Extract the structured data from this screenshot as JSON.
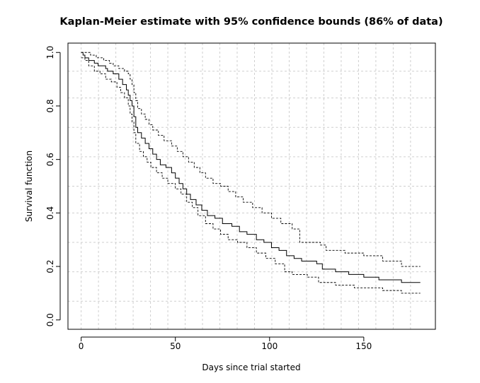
{
  "chart_data": {
    "type": "line",
    "title": "Kaplan-Meier estimate with 95% confidence bounds (86% of data)",
    "xlabel": "Days since trial started",
    "ylabel": "Survival function",
    "xlim": [
      -7,
      188
    ],
    "ylim": [
      -0.035,
      1.035
    ],
    "x_ticks": [
      0,
      50,
      100,
      150
    ],
    "y_ticks": [
      0.0,
      0.2,
      0.4,
      0.6,
      0.8,
      1.0
    ],
    "x_tick_labels": [
      "0",
      "50",
      "100",
      "150"
    ],
    "y_tick_labels": [
      "0.0",
      "0.2",
      "0.4",
      "0.6",
      "0.8",
      "1.0"
    ],
    "grid": true,
    "grid_x": [
      0,
      9.2,
      18.4,
      27.6,
      36.8,
      46,
      55.2,
      64.4,
      73.6,
      82.8,
      92,
      101.2,
      110.4,
      119.6,
      128.8,
      138,
      147.2,
      156.4,
      165.6,
      174.8
    ],
    "grid_y": [
      0.07,
      0.18,
      0.29,
      0.4,
      0.5,
      0.61,
      0.72,
      0.83,
      0.93
    ],
    "step": true,
    "series": [
      {
        "role": "estimate",
        "line_style": "solid",
        "points": [
          [
            0,
            1.0
          ],
          [
            1,
            0.99
          ],
          [
            2,
            0.98
          ],
          [
            4,
            0.97
          ],
          [
            7,
            0.96
          ],
          [
            9,
            0.95
          ],
          [
            13,
            0.94
          ],
          [
            14,
            0.93
          ],
          [
            17,
            0.92
          ],
          [
            20,
            0.9
          ],
          [
            22,
            0.88
          ],
          [
            24,
            0.86
          ],
          [
            25,
            0.84
          ],
          [
            26,
            0.82
          ],
          [
            27,
            0.8
          ],
          [
            28,
            0.76
          ],
          [
            29,
            0.72
          ],
          [
            30,
            0.7
          ],
          [
            32,
            0.68
          ],
          [
            34,
            0.66
          ],
          [
            36,
            0.64
          ],
          [
            38,
            0.62
          ],
          [
            40,
            0.6
          ],
          [
            42,
            0.58
          ],
          [
            45,
            0.57
          ],
          [
            48,
            0.55
          ],
          [
            50,
            0.53
          ],
          [
            52,
            0.51
          ],
          [
            54,
            0.49
          ],
          [
            56,
            0.47
          ],
          [
            58,
            0.45
          ],
          [
            61,
            0.43
          ],
          [
            64,
            0.41
          ],
          [
            67,
            0.39
          ],
          [
            71,
            0.38
          ],
          [
            75,
            0.36
          ],
          [
            80,
            0.35
          ],
          [
            84,
            0.33
          ],
          [
            88,
            0.32
          ],
          [
            93,
            0.3
          ],
          [
            97,
            0.29
          ],
          [
            101,
            0.27
          ],
          [
            105,
            0.26
          ],
          [
            109,
            0.24
          ],
          [
            113,
            0.23
          ],
          [
            117,
            0.22
          ],
          [
            125,
            0.21
          ],
          [
            128,
            0.19
          ],
          [
            135,
            0.18
          ],
          [
            142,
            0.17
          ],
          [
            150,
            0.16
          ],
          [
            158,
            0.15
          ],
          [
            170,
            0.14
          ],
          [
            180,
            0.14
          ]
        ]
      },
      {
        "role": "upper bound",
        "line_style": "dashed",
        "points": [
          [
            0,
            1.0
          ],
          [
            2,
            1.0
          ],
          [
            5,
            0.99
          ],
          [
            8,
            0.98
          ],
          [
            12,
            0.97
          ],
          [
            15,
            0.96
          ],
          [
            17,
            0.95
          ],
          [
            20,
            0.94
          ],
          [
            23,
            0.93
          ],
          [
            25,
            0.92
          ],
          [
            26,
            0.9
          ],
          [
            27,
            0.88
          ],
          [
            28,
            0.85
          ],
          [
            29,
            0.82
          ],
          [
            30,
            0.79
          ],
          [
            32,
            0.77
          ],
          [
            34,
            0.75
          ],
          [
            36,
            0.73
          ],
          [
            38,
            0.71
          ],
          [
            41,
            0.69
          ],
          [
            44,
            0.67
          ],
          [
            48,
            0.65
          ],
          [
            51,
            0.63
          ],
          [
            54,
            0.61
          ],
          [
            57,
            0.59
          ],
          [
            60,
            0.57
          ],
          [
            63,
            0.55
          ],
          [
            66,
            0.53
          ],
          [
            70,
            0.51
          ],
          [
            74,
            0.5
          ],
          [
            78,
            0.48
          ],
          [
            82,
            0.46
          ],
          [
            86,
            0.44
          ],
          [
            91,
            0.42
          ],
          [
            96,
            0.4
          ],
          [
            101,
            0.38
          ],
          [
            106,
            0.36
          ],
          [
            112,
            0.34
          ],
          [
            116,
            0.29
          ],
          [
            127,
            0.28
          ],
          [
            130,
            0.26
          ],
          [
            140,
            0.25
          ],
          [
            150,
            0.24
          ],
          [
            160,
            0.22
          ],
          [
            170,
            0.2
          ],
          [
            180,
            0.2
          ]
        ]
      },
      {
        "role": "lower bound",
        "line_style": "dashed",
        "points": [
          [
            0,
            0.98
          ],
          [
            2,
            0.97
          ],
          [
            4,
            0.95
          ],
          [
            7,
            0.93
          ],
          [
            10,
            0.92
          ],
          [
            13,
            0.9
          ],
          [
            16,
            0.89
          ],
          [
            19,
            0.87
          ],
          [
            21,
            0.85
          ],
          [
            23,
            0.83
          ],
          [
            25,
            0.8
          ],
          [
            26,
            0.77
          ],
          [
            27,
            0.74
          ],
          [
            28,
            0.7
          ],
          [
            29,
            0.66
          ],
          [
            31,
            0.63
          ],
          [
            33,
            0.61
          ],
          [
            35,
            0.59
          ],
          [
            37,
            0.57
          ],
          [
            40,
            0.55
          ],
          [
            43,
            0.53
          ],
          [
            46,
            0.51
          ],
          [
            50,
            0.49
          ],
          [
            53,
            0.47
          ],
          [
            56,
            0.44
          ],
          [
            59,
            0.42
          ],
          [
            62,
            0.39
          ],
          [
            66,
            0.36
          ],
          [
            70,
            0.34
          ],
          [
            74,
            0.32
          ],
          [
            78,
            0.3
          ],
          [
            83,
            0.29
          ],
          [
            88,
            0.27
          ],
          [
            93,
            0.25
          ],
          [
            98,
            0.23
          ],
          [
            103,
            0.21
          ],
          [
            108,
            0.18
          ],
          [
            112,
            0.17
          ],
          [
            120,
            0.16
          ],
          [
            126,
            0.14
          ],
          [
            135,
            0.13
          ],
          [
            145,
            0.12
          ],
          [
            160,
            0.11
          ],
          [
            170,
            0.1
          ],
          [
            180,
            0.1
          ]
        ]
      }
    ]
  }
}
